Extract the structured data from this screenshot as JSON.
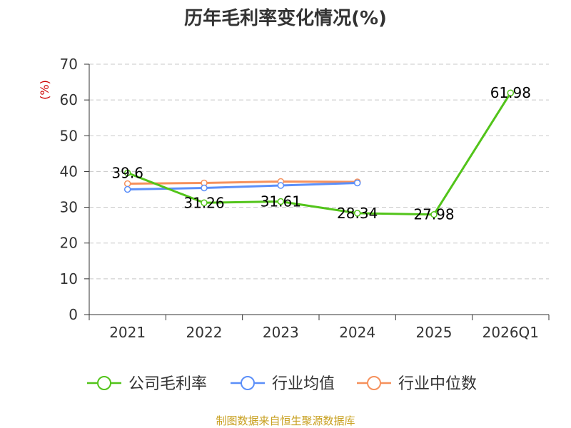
{
  "chart_data": {
    "type": "line",
    "title": "历年毛利率变化情况(%)",
    "ylabel": "(%)",
    "xlabel": "",
    "categories": [
      "2021",
      "2022",
      "2023",
      "2024",
      "2025",
      "2026Q1"
    ],
    "ylim": [
      0,
      70
    ],
    "yticks": [
      0,
      10,
      20,
      30,
      40,
      50,
      60,
      70
    ],
    "grid": true,
    "legend_position": "bottom",
    "series": [
      {
        "name": "公司毛利率",
        "color": "#52c41a",
        "values": [
          39.6,
          31.26,
          31.61,
          28.34,
          27.98,
          61.98
        ],
        "labels": [
          "39.6",
          "31.26",
          "31.61",
          "28.34",
          "27.98",
          "61.98"
        ]
      },
      {
        "name": "行业均值",
        "color": "#5b8ff9",
        "values": [
          35.0,
          35.4,
          36.1,
          36.8,
          null,
          null
        ]
      },
      {
        "name": "行业中位数",
        "color": "#f6915c",
        "values": [
          36.6,
          36.8,
          37.2,
          37.1,
          null,
          null
        ]
      }
    ]
  },
  "source": "制图数据来自恒生聚源数据库"
}
